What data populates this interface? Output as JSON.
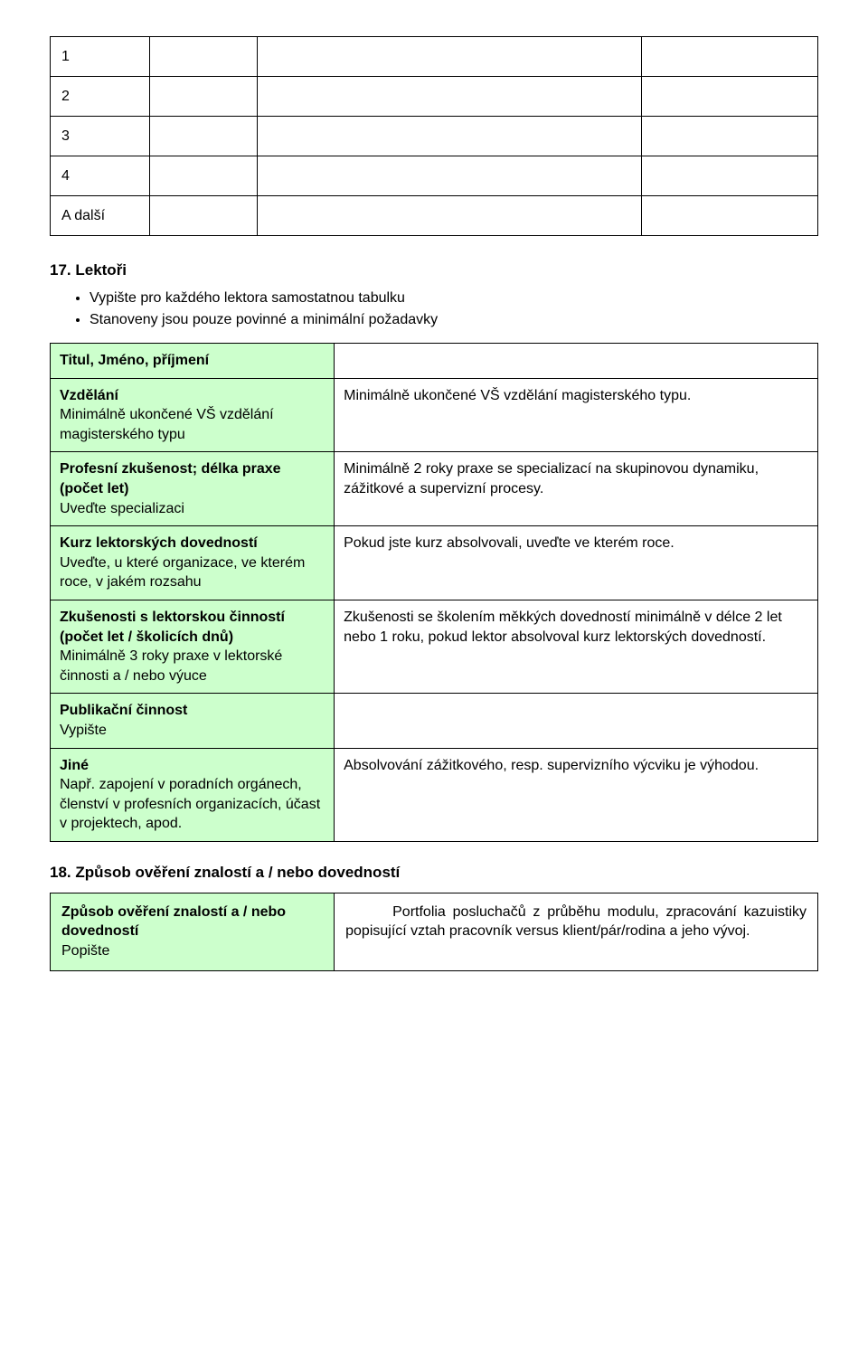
{
  "colors": {
    "label_bg": "#ccffcc",
    "border": "#000000",
    "page_bg": "#ffffff",
    "text": "#000000"
  },
  "top_rows": [
    "1",
    "2",
    "3",
    "4",
    "A další"
  ],
  "section17": {
    "title": "17. Lektoři",
    "bullets": [
      "Vypište pro každého lektora samostatnou tabulku",
      "Stanoveny jsou pouze povinné a minimální požadavky"
    ],
    "rows": [
      {
        "label_bold": "Titul, Jméno, příjmení",
        "label_plain": "",
        "value": ""
      },
      {
        "label_bold": "Vzdělání",
        "label_plain": "Minimálně ukončené VŠ vzdělání magisterského typu",
        "value": "Minimálně ukončené VŠ vzdělání magisterského typu."
      },
      {
        "label_bold": "Profesní zkušenost; délka praxe (počet let)",
        "label_plain": "Uveďte specializaci",
        "value": "Minimálně 2 roky praxe se specializací na skupinovou dynamiku, zážitkové a supervizní procesy."
      },
      {
        "label_bold": "Kurz lektorských dovedností",
        "label_plain": "Uveďte, u které organizace, ve kterém roce, v jakém rozsahu",
        "value": "Pokud jste kurz absolvovali, uveďte ve kterém roce."
      },
      {
        "label_bold": "Zkušenosti s lektorskou činností (počet let / školicích dnů)",
        "label_plain": "Minimálně 3 roky praxe v lektorské činnosti a / nebo výuce",
        "value": "Zkušenosti se školením měkkých dovedností minimálně v délce 2 let nebo 1 roku, pokud lektor absolvoval kurz lektorských dovedností."
      },
      {
        "label_bold": "Publikační činnost",
        "label_plain": "Vypište",
        "value": ""
      },
      {
        "label_bold": "Jiné",
        "label_plain": "Např. zapojení v poradních orgánech, členství v profesních organizacích, účast v projektech, apod.",
        "value": "Absolvování zážitkového, resp. supervizního výcviku je výhodou."
      }
    ]
  },
  "section18": {
    "title": "18. Způsob ověření znalostí a / nebo dovedností",
    "row": {
      "label_bold": "Způsob ověření znalostí a / nebo dovedností",
      "label_plain": "Popište",
      "value": "Portfolia posluchačů z průběhu modulu, zpracování kazuistiky popisující vztah pracovník versus klient/pár/rodina a jeho vývoj."
    }
  }
}
